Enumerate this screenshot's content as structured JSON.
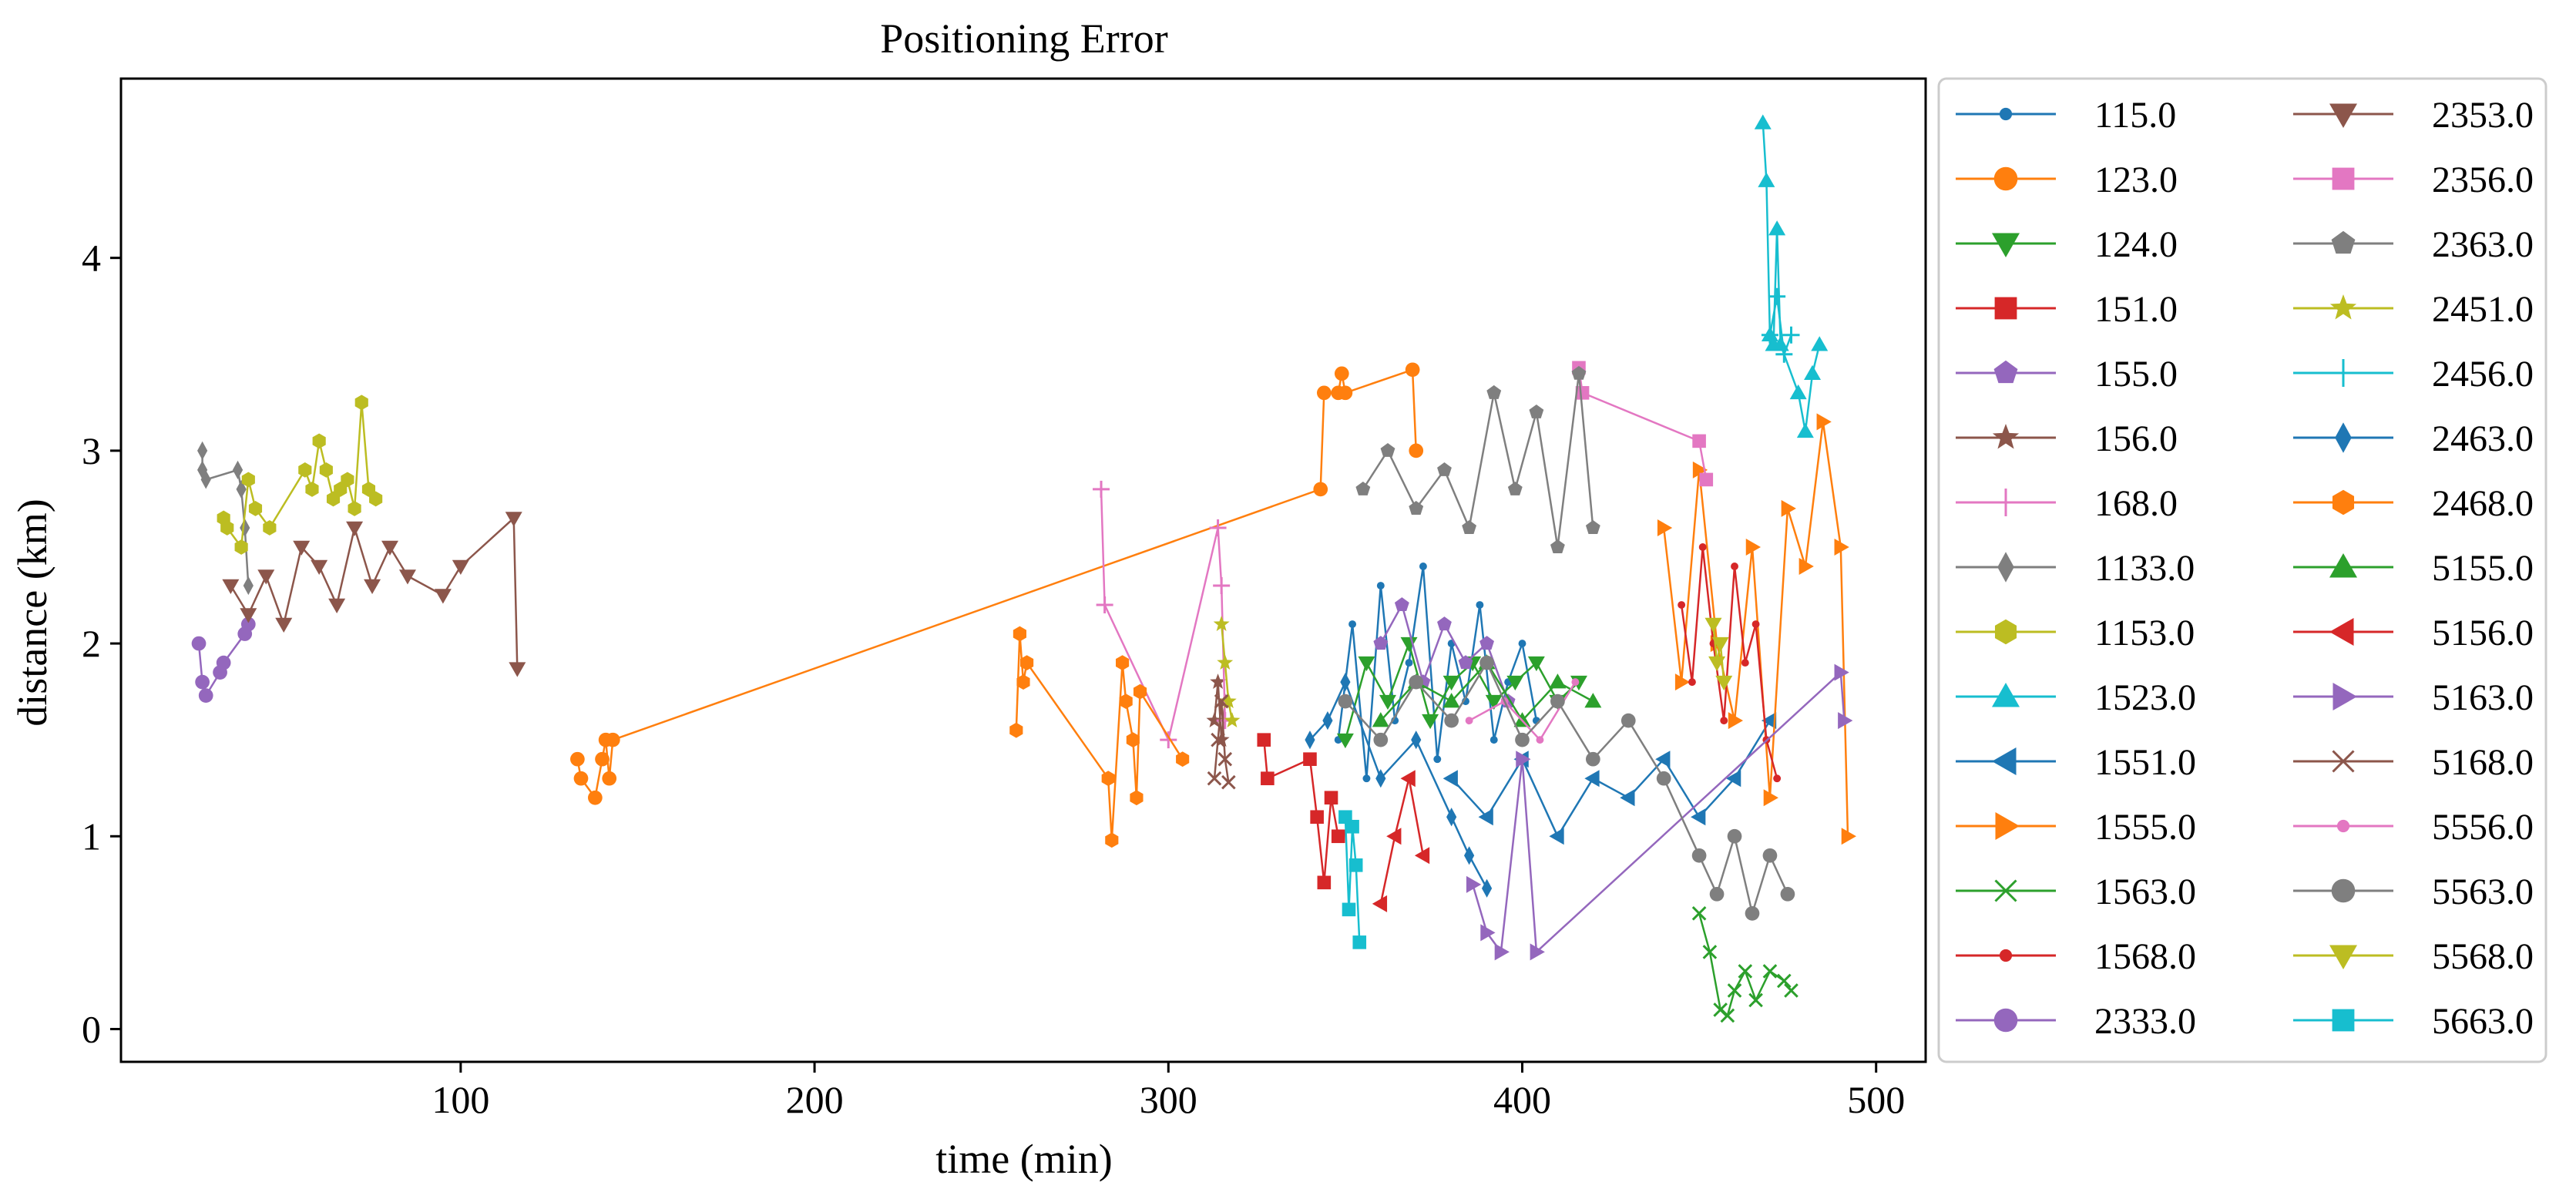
{
  "chart_data": {
    "type": "line",
    "title": "Positioning Error",
    "xlabel": "time (min)",
    "ylabel": "distance (km)",
    "xlim": [
      4,
      514
    ],
    "ylim": [
      -0.17,
      4.93
    ],
    "xticks": [
      100,
      200,
      300,
      400,
      500
    ],
    "yticks": [
      0,
      1,
      2,
      3,
      4
    ],
    "grid": false,
    "legend": {
      "position": "outside-right",
      "columns": 2
    },
    "series": [
      {
        "name": "115.0",
        "color": "#1f77b4",
        "marker": "point",
        "x": [
          348,
          352,
          356,
          360,
          364,
          368,
          372,
          376,
          380,
          384,
          388,
          392,
          396,
          400,
          404
        ],
        "y": [
          1.5,
          2.1,
          1.3,
          2.3,
          1.6,
          1.9,
          2.4,
          1.4,
          2.0,
          1.7,
          2.2,
          1.5,
          1.8,
          2.0,
          1.6
        ]
      },
      {
        "name": "123.0",
        "color": "#ff7f0e",
        "marker": "circle",
        "x": [
          133,
          134,
          138,
          140,
          141,
          142,
          143,
          343,
          344,
          348,
          349,
          350,
          369,
          370
        ],
        "y": [
          1.4,
          1.3,
          1.2,
          1.4,
          1.5,
          1.3,
          1.5,
          2.8,
          3.3,
          3.3,
          3.4,
          3.3,
          3.42,
          3.0
        ]
      },
      {
        "name": "124.0",
        "color": "#2ca02c",
        "marker": "triangle-down",
        "x": [
          350,
          356,
          362,
          368,
          374,
          380,
          386,
          392,
          398,
          404,
          410,
          416
        ],
        "y": [
          1.5,
          1.9,
          1.7,
          2.0,
          1.6,
          1.8,
          1.9,
          1.7,
          1.8,
          1.9,
          1.7,
          1.8
        ]
      },
      {
        "name": "151.0",
        "color": "#d62728",
        "marker": "square",
        "x": [
          327,
          328,
          340,
          342,
          344,
          346,
          348
        ],
        "y": [
          1.5,
          1.3,
          1.4,
          1.1,
          0.76,
          1.2,
          1.0
        ]
      },
      {
        "name": "155.0",
        "color": "#9467bd",
        "marker": "pentagon",
        "x": [
          360,
          366,
          372,
          378,
          384,
          390,
          396
        ],
        "y": [
          2.0,
          2.2,
          1.8,
          2.1,
          1.9,
          2.0,
          1.7
        ]
      },
      {
        "name": "156.0",
        "color": "#8c564b",
        "marker": "star",
        "x": [
          313,
          314,
          315,
          316
        ],
        "y": [
          1.6,
          1.8,
          1.5,
          1.7
        ]
      },
      {
        "name": "168.0",
        "color": "#e377c2",
        "marker": "plus",
        "x": [
          281,
          282,
          300,
          314,
          315,
          316
        ],
        "y": [
          2.8,
          2.2,
          1.5,
          2.6,
          2.3,
          1.6
        ]
      },
      {
        "name": "1133.0",
        "color": "#7f7f7f",
        "marker": "thin-diamond",
        "x": [
          27,
          27,
          28,
          37,
          38,
          39,
          40
        ],
        "y": [
          3.0,
          2.9,
          2.85,
          2.9,
          2.8,
          2.6,
          2.3
        ]
      },
      {
        "name": "1153.0",
        "color": "#bcbd22",
        "marker": "hexagon",
        "x": [
          33,
          34,
          38,
          40,
          42,
          46,
          56,
          58,
          60,
          62,
          64,
          66,
          68,
          70,
          72,
          74,
          76
        ],
        "y": [
          2.65,
          2.6,
          2.5,
          2.85,
          2.7,
          2.6,
          2.9,
          2.8,
          3.05,
          2.9,
          2.75,
          2.8,
          2.85,
          2.7,
          3.25,
          2.8,
          2.75
        ]
      },
      {
        "name": "1523.0",
        "color": "#17becf",
        "marker": "triangle-up",
        "x": [
          468,
          469,
          470,
          471,
          472,
          473,
          478,
          480,
          482,
          484
        ],
        "y": [
          4.7,
          4.4,
          3.6,
          3.55,
          4.15,
          3.55,
          3.3,
          3.1,
          3.4,
          3.55
        ]
      },
      {
        "name": "1551.0",
        "color": "#1f77b4",
        "marker": "triangle-left",
        "x": [
          380,
          390,
          400,
          410,
          420,
          430,
          440,
          450,
          460,
          470
        ],
        "y": [
          1.3,
          1.1,
          1.4,
          1.0,
          1.3,
          1.2,
          1.4,
          1.1,
          1.3,
          1.6
        ]
      },
      {
        "name": "1555.0",
        "color": "#ff7f0e",
        "marker": "triangle-right",
        "x": [
          440,
          445,
          450,
          455,
          460,
          465,
          470,
          475,
          480,
          485,
          490,
          492
        ],
        "y": [
          2.6,
          1.8,
          2.9,
          2.0,
          1.6,
          2.5,
          1.2,
          2.7,
          2.4,
          3.15,
          2.5,
          1.0
        ]
      },
      {
        "name": "1563.0",
        "color": "#2ca02c",
        "marker": "x",
        "x": [
          450,
          453,
          456,
          458,
          460,
          463,
          466,
          470,
          474,
          476
        ],
        "y": [
          0.6,
          0.4,
          0.1,
          0.07,
          0.2,
          0.3,
          0.15,
          0.3,
          0.25,
          0.2
        ]
      },
      {
        "name": "1568.0",
        "color": "#d62728",
        "marker": "point",
        "x": [
          445,
          448,
          451,
          454,
          457,
          460,
          463,
          466,
          469,
          472
        ],
        "y": [
          2.2,
          1.8,
          2.5,
          2.0,
          1.6,
          2.4,
          1.9,
          2.1,
          1.5,
          1.3
        ]
      },
      {
        "name": "2333.0",
        "color": "#9467bd",
        "marker": "circle",
        "x": [
          26,
          27,
          28,
          32,
          33,
          39,
          40
        ],
        "y": [
          2.0,
          1.8,
          1.73,
          1.85,
          1.9,
          2.05,
          2.1
        ]
      },
      {
        "name": "2353.0",
        "color": "#8c564b",
        "marker": "triangle-down",
        "x": [
          35,
          40,
          45,
          50,
          55,
          60,
          65,
          70,
          75,
          80,
          85,
          95,
          100,
          115,
          116
        ],
        "y": [
          2.3,
          2.15,
          2.35,
          2.1,
          2.5,
          2.4,
          2.2,
          2.6,
          2.3,
          2.5,
          2.35,
          2.25,
          2.4,
          2.65,
          1.87
        ]
      },
      {
        "name": "2356.0",
        "color": "#e377c2",
        "marker": "square",
        "x": [
          416,
          417,
          450,
          452
        ],
        "y": [
          3.43,
          3.3,
          3.05,
          2.85
        ]
      },
      {
        "name": "2363.0",
        "color": "#7f7f7f",
        "marker": "pentagon",
        "x": [
          355,
          362,
          370,
          378,
          385,
          392,
          398,
          404,
          410,
          416,
          420
        ],
        "y": [
          2.8,
          3.0,
          2.7,
          2.9,
          2.6,
          3.3,
          2.8,
          3.2,
          2.5,
          3.4,
          2.6
        ]
      },
      {
        "name": "2451.0",
        "color": "#bcbd22",
        "marker": "star",
        "x": [
          315,
          316,
          317,
          318
        ],
        "y": [
          2.1,
          1.9,
          1.7,
          1.6
        ]
      },
      {
        "name": "2456.0",
        "color": "#17becf",
        "marker": "plus",
        "x": [
          470,
          472,
          474,
          476
        ],
        "y": [
          3.6,
          3.8,
          3.5,
          3.6
        ]
      },
      {
        "name": "2463.0",
        "color": "#1f77b4",
        "marker": "thin-diamond",
        "x": [
          340,
          345,
          350,
          360,
          370,
          380,
          385,
          390
        ],
        "y": [
          1.5,
          1.6,
          1.8,
          1.3,
          1.5,
          1.1,
          0.9,
          0.73
        ]
      },
      {
        "name": "2468.0",
        "color": "#ff7f0e",
        "marker": "hexagon",
        "x": [
          257,
          258,
          259,
          260,
          283,
          284,
          287,
          288,
          290,
          291,
          292,
          304
        ],
        "y": [
          1.55,
          2.05,
          1.8,
          1.9,
          1.3,
          0.98,
          1.9,
          1.7,
          1.5,
          1.2,
          1.75,
          1.4
        ]
      },
      {
        "name": "5155.0",
        "color": "#2ca02c",
        "marker": "triangle-up",
        "x": [
          360,
          370,
          380,
          390,
          400,
          410,
          420
        ],
        "y": [
          1.6,
          1.8,
          1.7,
          1.9,
          1.6,
          1.8,
          1.7
        ]
      },
      {
        "name": "5156.0",
        "color": "#d62728",
        "marker": "triangle-left",
        "x": [
          360,
          364,
          368,
          372
        ],
        "y": [
          0.65,
          1.0,
          1.3,
          0.9
        ]
      },
      {
        "name": "5163.0",
        "color": "#9467bd",
        "marker": "triangle-right",
        "x": [
          386,
          390,
          394,
          400,
          404,
          490,
          491
        ],
        "y": [
          0.75,
          0.5,
          0.4,
          1.4,
          0.4,
          1.85,
          1.6
        ]
      },
      {
        "name": "5168.0",
        "color": "#8c564b",
        "marker": "x",
        "x": [
          313,
          314,
          315,
          316,
          317
        ],
        "y": [
          1.3,
          1.5,
          1.7,
          1.4,
          1.28
        ]
      },
      {
        "name": "5556.0",
        "color": "#e377c2",
        "marker": "point",
        "x": [
          385,
          395,
          405,
          415
        ],
        "y": [
          1.6,
          1.7,
          1.5,
          1.8
        ]
      },
      {
        "name": "5563.0",
        "color": "#7f7f7f",
        "marker": "circle",
        "x": [
          350,
          360,
          370,
          380,
          390,
          400,
          410,
          420,
          430,
          440,
          450,
          455,
          460,
          465,
          470,
          475
        ],
        "y": [
          1.7,
          1.5,
          1.8,
          1.6,
          1.9,
          1.5,
          1.7,
          1.4,
          1.6,
          1.3,
          0.9,
          0.7,
          1.0,
          0.6,
          0.9,
          0.7
        ]
      },
      {
        "name": "5568.0",
        "color": "#bcbd22",
        "marker": "triangle-down",
        "x": [
          454,
          455,
          456,
          457
        ],
        "y": [
          2.1,
          1.9,
          2.0,
          1.8
        ]
      },
      {
        "name": "5663.0",
        "color": "#17becf",
        "marker": "square",
        "x": [
          350,
          351,
          352,
          353,
          354
        ],
        "y": [
          1.1,
          0.62,
          1.05,
          0.85,
          0.45
        ]
      }
    ]
  }
}
